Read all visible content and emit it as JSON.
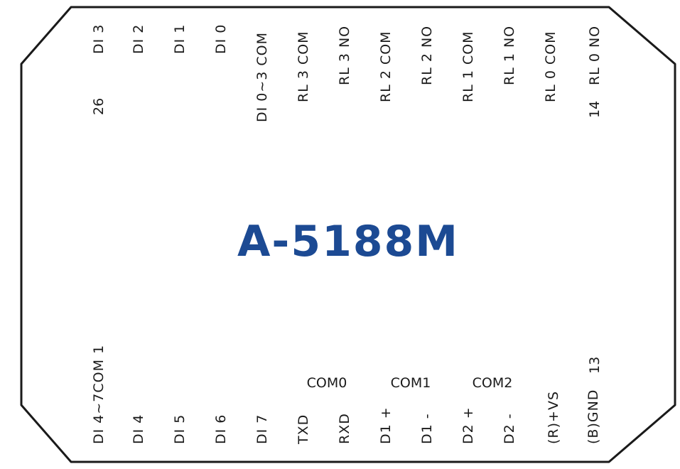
{
  "model": "A-5188M",
  "top_pins": [
    "DI 3",
    "DI 2",
    "DI 1",
    "DI 0",
    "DI 0~3 COM",
    "RL 3 COM",
    "RL 3 NO",
    "RL 2 COM",
    "RL 2 NO",
    "RL 1 COM",
    "RL 1 NO",
    "RL 0 COM",
    "RL 0 NO"
  ],
  "top_pin_numbers": {
    "first": "26",
    "last": "14"
  },
  "bottom_pins": [
    "DI 4~7COM 1",
    "DI 4",
    "DI 5",
    "DI 6",
    "DI 7",
    "TXD",
    "RXD",
    "D1 +",
    "D1 -",
    "D2 +",
    "D2 -",
    "(R)+VS",
    "(B)GND"
  ],
  "bottom_pin_number": "13",
  "port_groups": [
    "COM0",
    "COM1",
    "COM2"
  ]
}
